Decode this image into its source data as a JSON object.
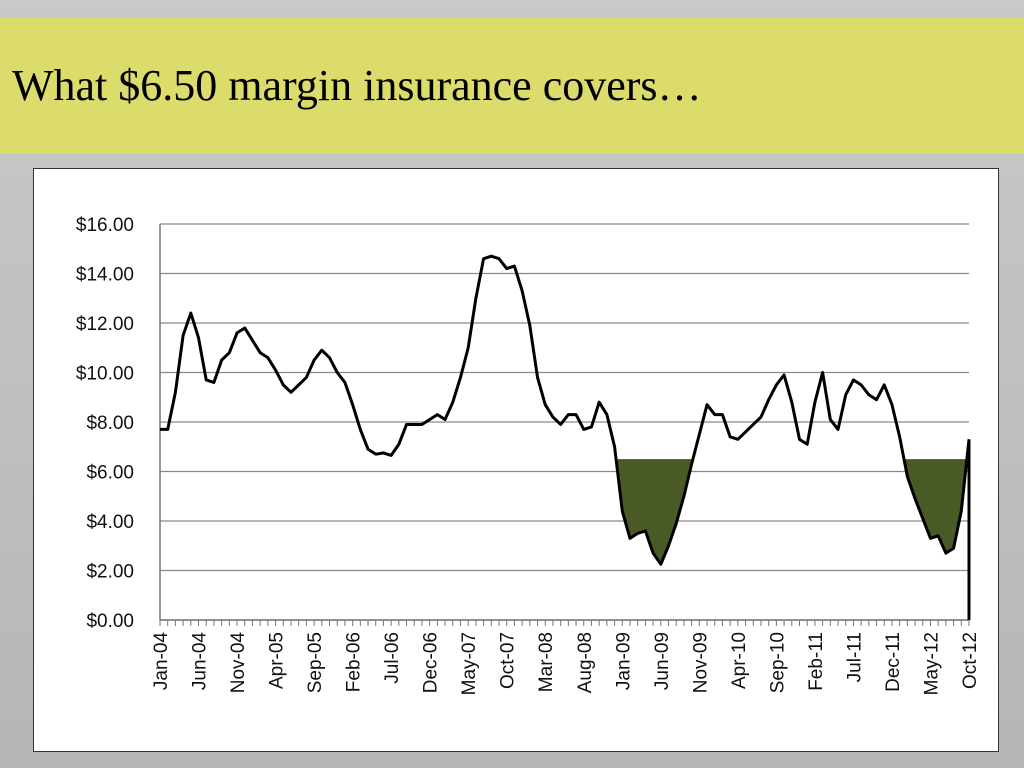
{
  "slide": {
    "title": "What $6.50 margin insurance covers…"
  },
  "colors": {
    "title_band": "#dcdc6c",
    "line": "#000000",
    "fill": "#4a5a26",
    "grid": "#8a8a8a"
  },
  "chart_data": {
    "type": "line",
    "title": "",
    "xlabel": "",
    "ylabel": "",
    "ylim": [
      0,
      16
    ],
    "y_ticks": [
      "$0.00",
      "$2.00",
      "$4.00",
      "$6.00",
      "$8.00",
      "$10.00",
      "$12.00",
      "$14.00",
      "$16.00"
    ],
    "x_tick_labels": [
      "Jan-04",
      "Jun-04",
      "Nov-04",
      "Apr-05",
      "Sep-05",
      "Feb-06",
      "Jul-06",
      "Dec-06",
      "May-07",
      "Oct-07",
      "Mar-08",
      "Aug-08",
      "Jan-09",
      "Jun-09",
      "Nov-09",
      "Apr-10",
      "Sep-10",
      "Feb-11",
      "Jul-11",
      "Dec-11",
      "May-12",
      "Oct-12"
    ],
    "threshold": 6.5,
    "grid": true,
    "legend": "none",
    "x": [
      "Jan-04",
      "Feb-04",
      "Mar-04",
      "Apr-04",
      "May-04",
      "Jun-04",
      "Jul-04",
      "Aug-04",
      "Sep-04",
      "Oct-04",
      "Nov-04",
      "Dec-04",
      "Jan-05",
      "Feb-05",
      "Mar-05",
      "Apr-05",
      "May-05",
      "Jun-05",
      "Jul-05",
      "Aug-05",
      "Sep-05",
      "Oct-05",
      "Nov-05",
      "Dec-05",
      "Jan-06",
      "Feb-06",
      "Mar-06",
      "Apr-06",
      "May-06",
      "Jun-06",
      "Jul-06",
      "Aug-06",
      "Sep-06",
      "Oct-06",
      "Nov-06",
      "Dec-06",
      "Jan-07",
      "Feb-07",
      "Mar-07",
      "Apr-07",
      "May-07",
      "Jun-07",
      "Jul-07",
      "Aug-07",
      "Sep-07",
      "Oct-07",
      "Nov-07",
      "Dec-07",
      "Jan-08",
      "Feb-08",
      "Mar-08",
      "Apr-08",
      "May-08",
      "Jun-08",
      "Jul-08",
      "Aug-08",
      "Sep-08",
      "Oct-08",
      "Nov-08",
      "Dec-08",
      "Jan-09",
      "Feb-09",
      "Mar-09",
      "Apr-09",
      "May-09",
      "Jun-09",
      "Jul-09",
      "Aug-09",
      "Sep-09",
      "Oct-09",
      "Nov-09",
      "Dec-09",
      "Jan-10",
      "Feb-10",
      "Mar-10",
      "Apr-10",
      "May-10",
      "Jun-10",
      "Jul-10",
      "Aug-10",
      "Sep-10",
      "Oct-10",
      "Nov-10",
      "Dec-10",
      "Jan-11",
      "Feb-11",
      "Mar-11",
      "Apr-11",
      "May-11",
      "Jun-11",
      "Jul-11",
      "Aug-11",
      "Sep-11",
      "Oct-11",
      "Nov-11",
      "Dec-11",
      "Jan-12",
      "Feb-12",
      "Mar-12",
      "Apr-12",
      "May-12",
      "Jun-12",
      "Jul-12",
      "Aug-12",
      "Sep-12",
      "Oct-12"
    ],
    "series": [
      {
        "values": [
          7.7,
          7.7,
          9.2,
          11.5,
          12.4,
          11.4,
          9.7,
          9.6,
          10.5,
          10.8,
          11.6,
          11.8,
          11.3,
          10.8,
          10.6,
          10.1,
          9.5,
          9.2,
          9.5,
          9.8,
          10.5,
          10.9,
          10.6,
          10.0,
          9.6,
          8.7,
          7.7,
          6.9,
          6.7,
          6.75,
          6.65,
          7.1,
          7.9,
          7.9,
          7.9,
          8.1,
          8.3,
          8.1,
          8.8,
          9.8,
          11.0,
          13.0,
          14.6,
          14.7,
          14.6,
          14.2,
          14.3,
          13.3,
          11.9,
          9.8,
          8.7,
          8.2,
          7.9,
          8.3,
          8.3,
          7.7,
          7.8,
          8.8,
          8.3,
          7.0,
          4.4,
          3.3,
          3.5,
          3.6,
          2.7,
          2.25,
          3.0,
          3.9,
          5.0,
          6.3,
          7.5,
          8.7,
          8.3,
          8.3,
          7.4,
          7.3,
          7.6,
          7.9,
          8.2,
          8.9,
          9.5,
          9.9,
          8.8,
          7.3,
          7.1,
          8.8,
          10.0,
          8.1,
          7.7,
          9.1,
          9.7,
          9.5,
          9.1,
          8.9,
          9.5,
          8.7,
          7.4,
          5.8,
          4.9,
          4.1,
          3.3,
          3.4,
          2.7,
          2.9,
          4.4,
          7.3
        ]
      }
    ]
  }
}
